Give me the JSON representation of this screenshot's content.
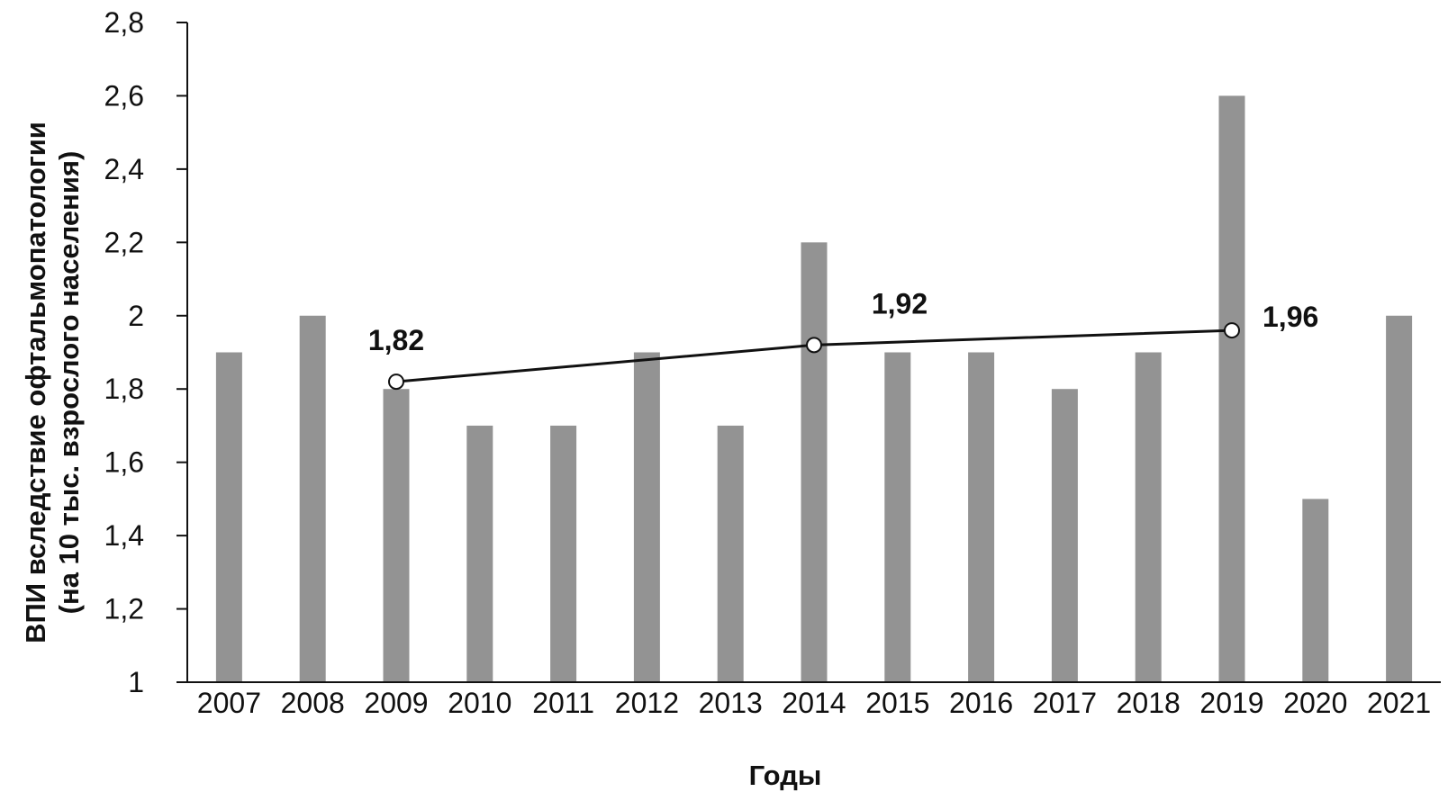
{
  "chart_data": {
    "type": "bar",
    "xlabel": "Годы",
    "ylabel_line1": "ВПИ  вследствие офтальмопатологии",
    "ylabel_line2": "(на 10 тыс. взрослого населения)",
    "ylim": [
      1,
      2.8
    ],
    "yticks": [
      {
        "value": 1,
        "label": "1"
      },
      {
        "value": 1.2,
        "label": "1,2"
      },
      {
        "value": 1.4,
        "label": "1,4"
      },
      {
        "value": 1.6,
        "label": "1,6"
      },
      {
        "value": 1.8,
        "label": "1,8"
      },
      {
        "value": 2,
        "label": "2"
      },
      {
        "value": 2.2,
        "label": "2,2"
      },
      {
        "value": 2.4,
        "label": "2,4"
      },
      {
        "value": 2.6,
        "label": "2,6"
      },
      {
        "value": 2.8,
        "label": "2,8"
      }
    ],
    "categories": [
      "2007",
      "2008",
      "2009",
      "2010",
      "2011",
      "2012",
      "2013",
      "2014",
      "2015",
      "2016",
      "2017",
      "2018",
      "2019",
      "2020",
      "2021"
    ],
    "values": [
      1.9,
      2.0,
      1.8,
      1.7,
      1.7,
      1.9,
      1.7,
      2.2,
      1.9,
      1.9,
      1.8,
      1.9,
      2.6,
      1.5,
      2.0
    ],
    "trend": {
      "type": "line",
      "points": [
        {
          "x": "2009",
          "y": 1.82,
          "label": "1,82",
          "label_position": "above"
        },
        {
          "x": "2014",
          "y": 1.92,
          "label": "1,92",
          "label_position": "above-right"
        },
        {
          "x": "2019",
          "y": 1.96,
          "label": "1,96",
          "label_position": "right"
        }
      ]
    },
    "grid": false,
    "legend": "none",
    "colors": {
      "bar": "#939393",
      "line": "#111111",
      "marker_fill": "#ffffff",
      "axis": "#111111",
      "text": "#111111"
    }
  }
}
